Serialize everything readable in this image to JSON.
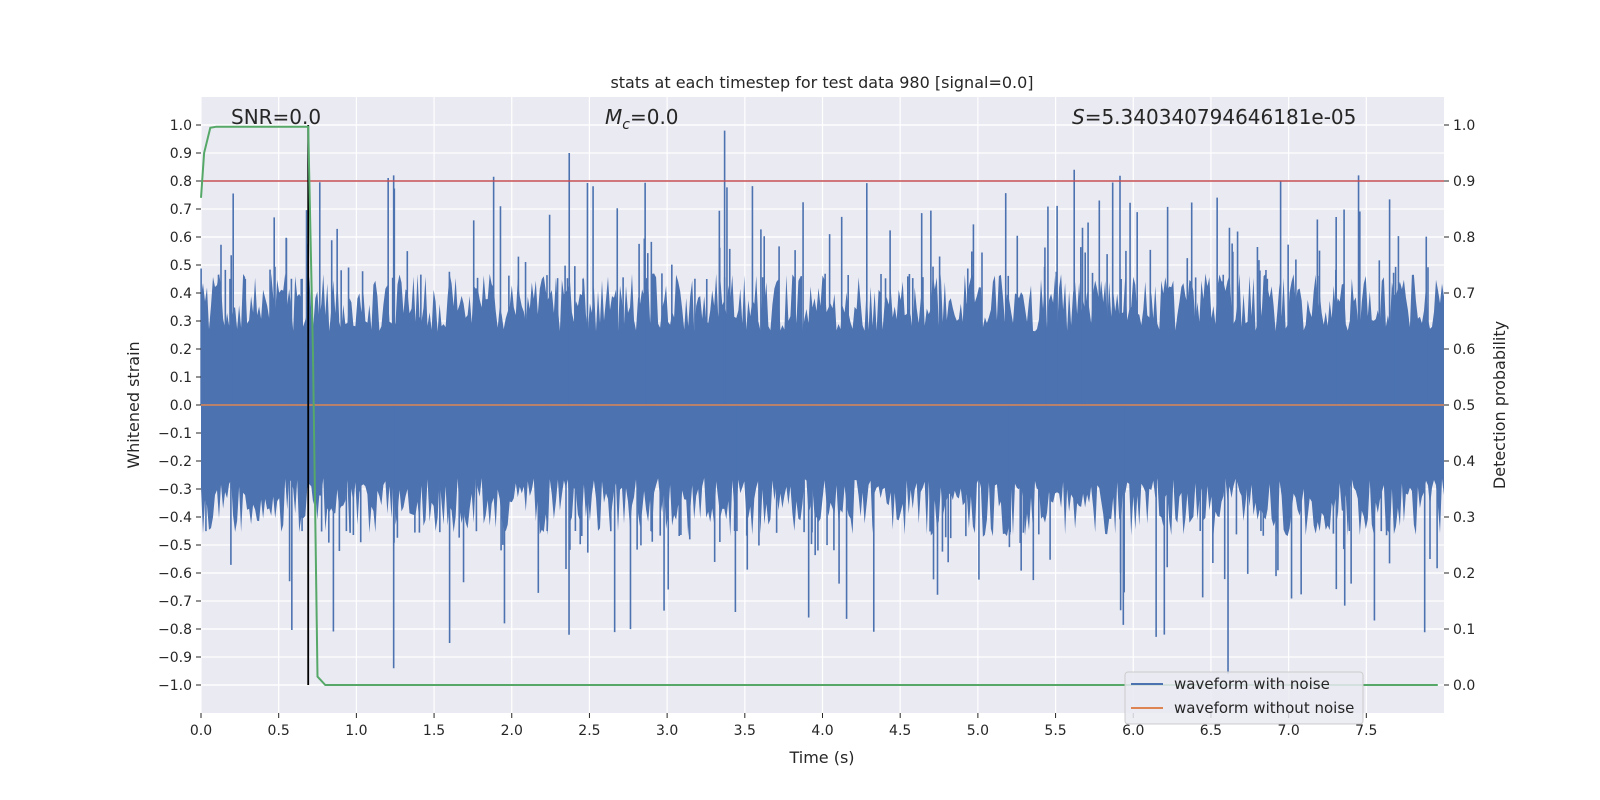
{
  "chart_data": {
    "type": "line",
    "title": "stats at each timestep for test data 980 [signal=0.0]",
    "xlabel": "Time (s)",
    "ylabel_left": "Whitened strain",
    "ylabel_right": "Detection probability",
    "xlim": [
      0.0,
      8.0
    ],
    "ylim_left": [
      -1.1,
      1.1
    ],
    "ylim_right": [
      -0.05,
      1.05
    ],
    "x_ticks": [
      0.0,
      0.5,
      1.0,
      1.5,
      2.0,
      2.5,
      3.0,
      3.5,
      4.0,
      4.5,
      5.0,
      5.5,
      6.0,
      6.5,
      7.0,
      7.5
    ],
    "x_tick_labels": [
      "0.0",
      "0.5",
      "1.0",
      "1.5",
      "2.0",
      "2.5",
      "3.0",
      "3.5",
      "4.0",
      "4.5",
      "5.0",
      "5.5",
      "6.0",
      "6.5",
      "7.0",
      "7.5"
    ],
    "y_left_ticks": [
      1.0,
      0.9,
      0.8,
      0.7,
      0.6,
      0.5,
      0.4,
      0.3,
      0.2,
      0.1,
      0.0,
      -0.1,
      -0.2,
      -0.3,
      -0.4,
      -0.5,
      -0.6,
      -0.7,
      -0.8,
      -0.9,
      -1.0
    ],
    "y_left_tick_labels": [
      "1.0",
      "0.9",
      "0.8",
      "0.7",
      "0.6",
      "0.5",
      "0.4",
      "0.3",
      "0.2",
      "0.1",
      "0.0",
      "−0.1",
      "−0.2",
      "−0.3",
      "−0.4",
      "−0.5",
      "−0.6",
      "−0.7",
      "−0.8",
      "−0.9",
      "−1.0"
    ],
    "y_right_ticks": [
      1.0,
      0.9,
      0.8,
      0.7,
      0.6,
      0.5,
      0.4,
      0.3,
      0.2,
      0.1,
      0.0
    ],
    "y_right_tick_labels": [
      "1.0",
      "0.9",
      "0.8",
      "0.7",
      "0.6",
      "0.5",
      "0.4",
      "0.3",
      "0.2",
      "0.1",
      "0.0"
    ],
    "annotations": {
      "snr": "SNR=0.0",
      "mc_symbol": "M",
      "mc_subscript": "c",
      "mc_value": "=0.0",
      "s_symbol": "S",
      "s_value": "=5.340340794646181e-05"
    },
    "threshold": 0.9,
    "marker_time": 0.69,
    "series": [
      {
        "name": "waveform with noise",
        "color": "#4c72b0",
        "axis": "left",
        "kind": "noise",
        "duration": 8.0,
        "sample_rate": 2048,
        "typical_envelope": 0.42,
        "peak_max": 0.98,
        "peak_min": -0.96
      },
      {
        "name": "waveform without noise",
        "color": "#dd8452",
        "axis": "left",
        "constant": 0.0
      },
      {
        "name": "detection probability",
        "color": "#55a868",
        "axis": "right",
        "x": [
          0.0,
          0.02,
          0.06,
          0.1,
          0.69,
          0.72,
          0.75,
          0.8,
          7.96
        ],
        "y": [
          0.87,
          0.95,
          0.995,
          0.997,
          0.997,
          0.6,
          0.015,
          0.0,
          0.0
        ]
      },
      {
        "name": "threshold",
        "color": "#c44e52",
        "axis": "right",
        "constant": 0.9
      },
      {
        "name": "marker",
        "color": "#000000",
        "axis": "left",
        "vertical_at": 0.69,
        "from": -1.0,
        "to": 1.0
      }
    ],
    "legend": {
      "location": "lower-right",
      "entries": [
        {
          "label": "waveform with noise",
          "color": "#4c72b0"
        },
        {
          "label": "waveform without noise",
          "color": "#dd8452"
        }
      ]
    },
    "grid": true,
    "colors": {
      "background": "#eaeaf2",
      "grid": "#ffffff",
      "text": "#262626"
    }
  }
}
